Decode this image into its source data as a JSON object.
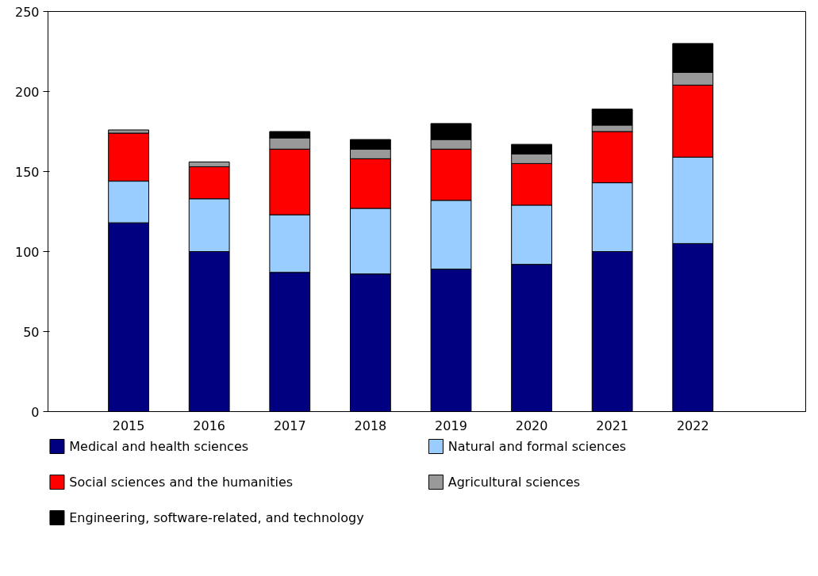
{
  "chart_data": {
    "type": "bar",
    "stacked": true,
    "categories": [
      "2015",
      "2016",
      "2017",
      "2018",
      "2019",
      "2020",
      "2021",
      "2022"
    ],
    "series": [
      {
        "name": "Medical and health sciences",
        "color": "#000080",
        "values": [
          118,
          100,
          87,
          86,
          89,
          92,
          100,
          105
        ]
      },
      {
        "name": "Natural and formal sciences",
        "color": "#99ccff",
        "values": [
          26,
          33,
          36,
          41,
          43,
          37,
          43,
          54
        ]
      },
      {
        "name": "Social sciences and the humanities",
        "color": "#ff0000",
        "values": [
          30,
          20,
          41,
          31,
          32,
          26,
          32,
          45
        ]
      },
      {
        "name": "Agricultural sciences",
        "color": "#999999",
        "values": [
          2,
          3,
          7,
          6,
          6,
          6,
          4,
          8
        ]
      },
      {
        "name": "Engineering, software-related, and technology",
        "color": "#000000",
        "values": [
          0,
          0,
          4,
          6,
          10,
          6,
          10,
          18
        ]
      }
    ],
    "ylim": [
      0,
      250
    ],
    "yticks": [
      0,
      50,
      100,
      150,
      200,
      250
    ],
    "grid": false,
    "legend": "bottom"
  }
}
